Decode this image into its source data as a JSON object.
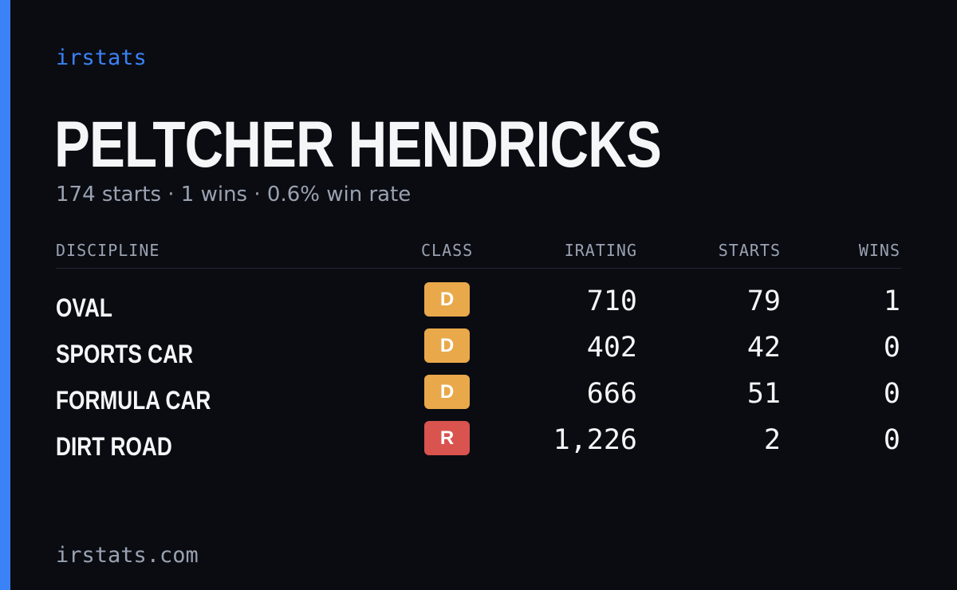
{
  "brand": "irstats",
  "driver": {
    "name": "PELTCHER HENDRICKS",
    "summary": "174 starts · 1 wins · 0.6% win rate"
  },
  "table": {
    "headers": {
      "discipline": "DISCIPLINE",
      "class": "CLASS",
      "irating": "IRATING",
      "starts": "STARTS",
      "wins": "WINS"
    },
    "rows": [
      {
        "discipline": "OVAL",
        "class": "D",
        "class_color": "#e9a94a",
        "irating": "710",
        "starts": "79",
        "wins": "1"
      },
      {
        "discipline": "SPORTS CAR",
        "class": "D",
        "class_color": "#e9a94a",
        "irating": "402",
        "starts": "42",
        "wins": "0"
      },
      {
        "discipline": "FORMULA CAR",
        "class": "D",
        "class_color": "#e9a94a",
        "irating": "666",
        "starts": "51",
        "wins": "0"
      },
      {
        "discipline": "DIRT ROAD",
        "class": "R",
        "class_color": "#d9534f",
        "irating": "1,226",
        "starts": "2",
        "wins": "0"
      }
    ]
  },
  "footer": {
    "url": "irstats.com"
  },
  "colors": {
    "accent": "#3b82f6",
    "background": "#0a0c12",
    "class_d": "#e9a94a",
    "class_r": "#d9534f"
  }
}
